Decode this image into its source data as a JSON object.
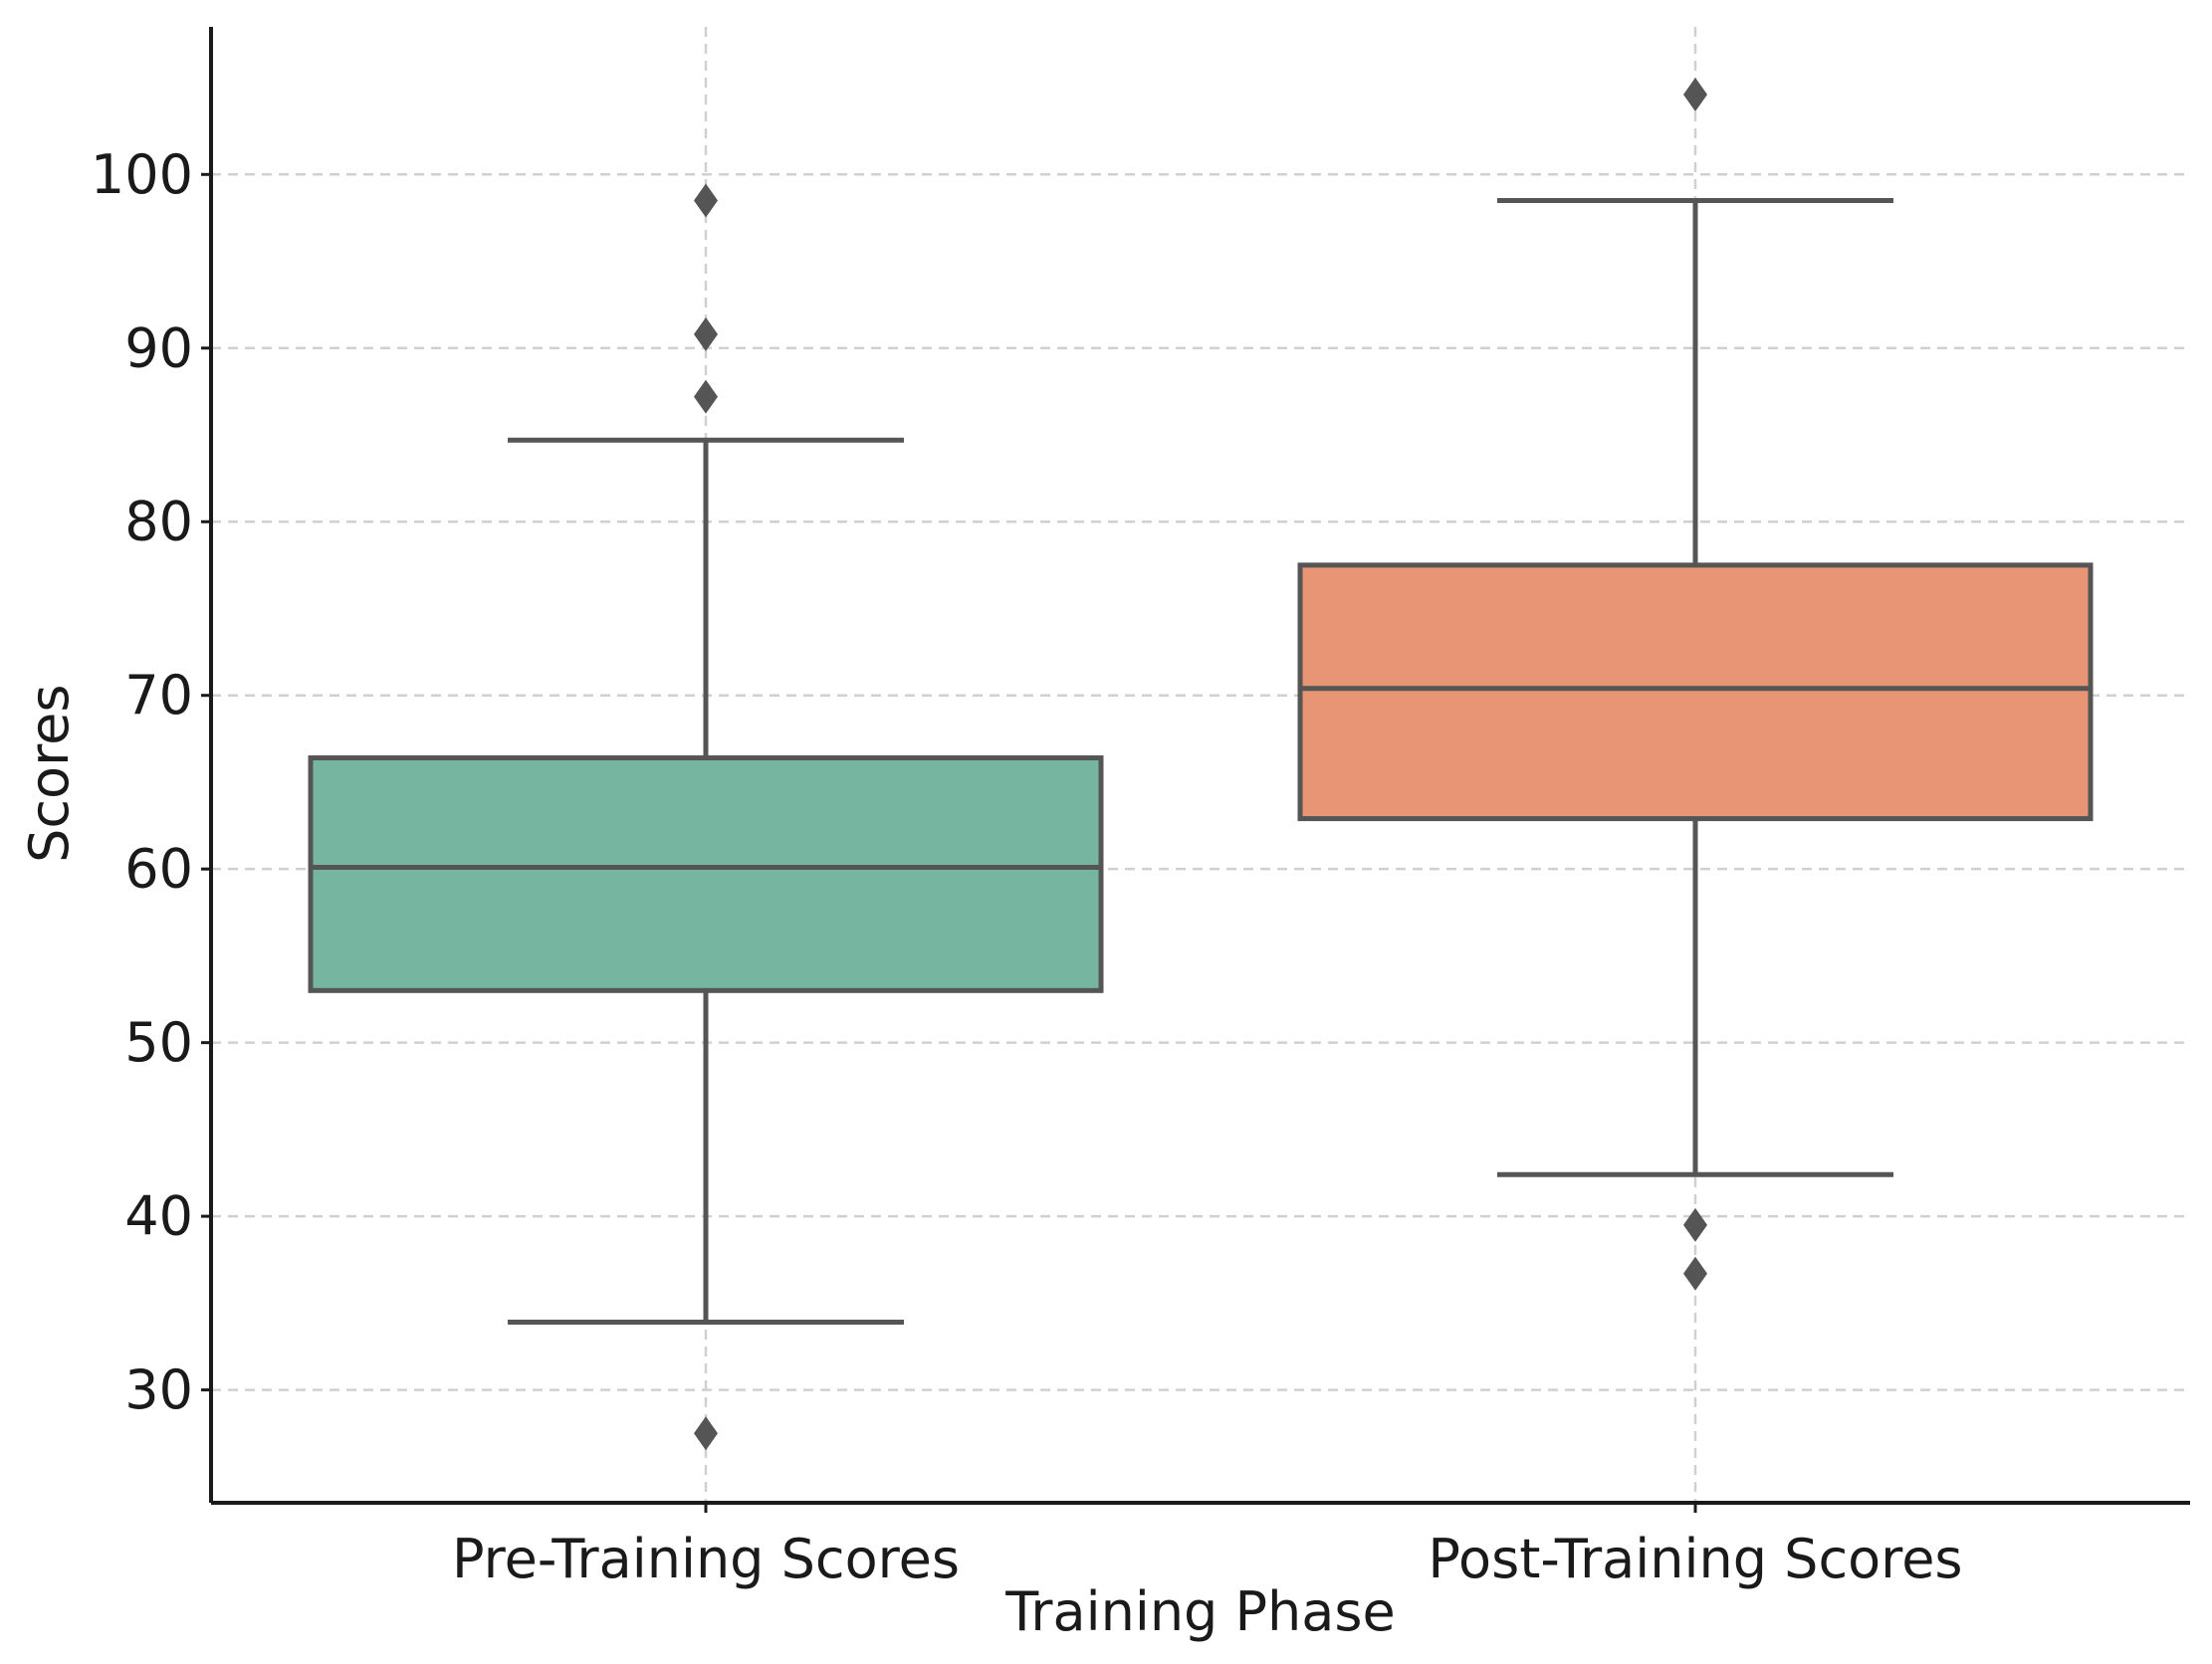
{
  "chart_data": {
    "type": "box",
    "title": "",
    "xlabel": "Training Phase",
    "ylabel": "Scores",
    "ylim": [
      23.5,
      108.5
    ],
    "yticks": [
      30,
      40,
      50,
      60,
      70,
      80,
      90,
      100
    ],
    "grid": true,
    "categories": [
      "Pre-Training Scores",
      "Post-Training Scores"
    ],
    "series": [
      {
        "name": "Pre-Training Scores",
        "color": "#76b6a0",
        "whisker_low": 33.9,
        "q1": 53.0,
        "median": 60.1,
        "q3": 66.4,
        "whisker_high": 84.7,
        "outliers": [
          98.5,
          90.8,
          87.2,
          27.5
        ]
      },
      {
        "name": "Post-Training Scores",
        "color": "#e79575",
        "whisker_low": 42.4,
        "q1": 62.9,
        "median": 70.4,
        "q3": 77.5,
        "whisker_high": 98.5,
        "outliers": [
          104.6,
          39.5,
          36.7
        ]
      }
    ],
    "line_color": "#555555",
    "tick_labels": {
      "t30": "30",
      "t40": "40",
      "t50": "50",
      "t60": "60",
      "t70": "70",
      "t80": "80",
      "t90": "90",
      "t100": "100"
    }
  }
}
